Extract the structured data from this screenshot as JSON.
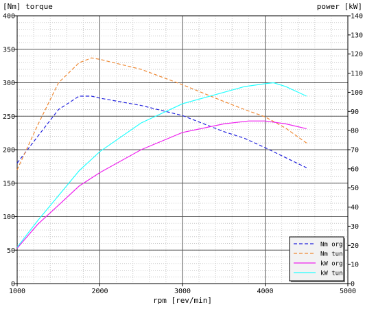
{
  "chart_data": {
    "type": "line",
    "title_left": "[Nm] torque",
    "title_right": "power [kW]",
    "xlabel": "rpm [rev/min]",
    "xlim": [
      1000,
      5000
    ],
    "ylim_left": [
      0,
      400
    ],
    "ylim_right": [
      0,
      140
    ],
    "x_ticks": [
      "1000",
      "2000",
      "3000",
      "4000",
      "5000"
    ],
    "y_left_ticks": [
      "0",
      "50",
      "100",
      "150",
      "200",
      "250",
      "300",
      "350",
      "400"
    ],
    "y_right_ticks": [
      "0",
      "10",
      "20",
      "30",
      "40",
      "50",
      "60",
      "70",
      "80",
      "90",
      "100",
      "110",
      "120",
      "130",
      "140"
    ],
    "grid": true,
    "legend_position": "bottom-right",
    "series": [
      {
        "name": "Nm org",
        "axis": "left",
        "color": "#2222dd",
        "dash": true,
        "x": [
          1000,
          1250,
          1500,
          1750,
          1900,
          2000,
          2500,
          3000,
          3500,
          3750,
          4000,
          4250,
          4500
        ],
        "y": [
          180,
          220,
          260,
          280,
          280,
          277,
          266,
          251,
          227,
          217,
          203,
          188,
          173
        ]
      },
      {
        "name": "Nm tun",
        "axis": "left",
        "color": "#ee8833",
        "dash": true,
        "x": [
          1000,
          1250,
          1500,
          1750,
          1900,
          2000,
          2500,
          3000,
          3500,
          3750,
          4000,
          4250,
          4500
        ],
        "y": [
          170,
          237,
          300,
          330,
          337,
          335,
          320,
          297,
          272,
          260,
          249,
          232,
          210
        ]
      },
      {
        "name": "kW org",
        "axis": "right",
        "color": "#ee22ee",
        "dash": false,
        "x": [
          1000,
          1250,
          1500,
          1750,
          2000,
          2500,
          3000,
          3500,
          3800,
          4000,
          4250,
          4500
        ],
        "y": [
          18.5,
          31,
          41,
          51,
          58,
          70,
          79,
          83.5,
          85,
          85,
          83.5,
          81
        ]
      },
      {
        "name": "kW tun",
        "axis": "right",
        "color": "#22ffff",
        "dash": false,
        "x": [
          1000,
          1250,
          1500,
          1750,
          2000,
          2500,
          3000,
          3500,
          3750,
          4000,
          4100,
          4250,
          4500
        ],
        "y": [
          19,
          33,
          46,
          59,
          69,
          84,
          94,
          100,
          103,
          104.5,
          105,
          103,
          98
        ]
      }
    ]
  }
}
